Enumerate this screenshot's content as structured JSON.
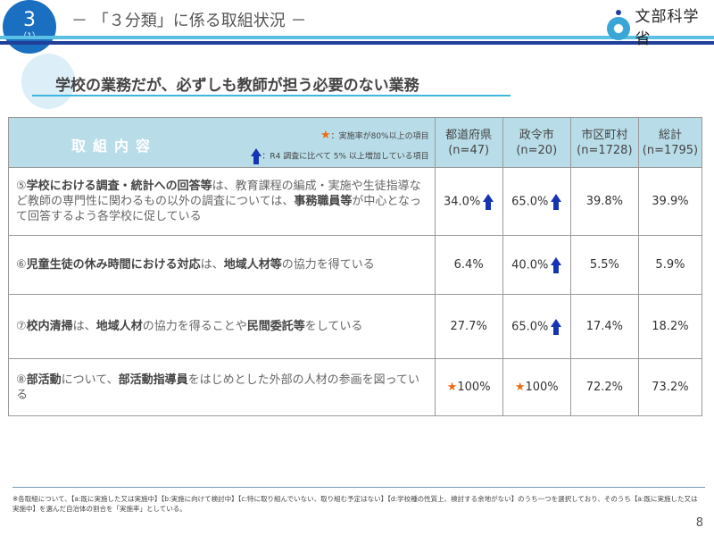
{
  "header": {
    "section_number": "3",
    "section_sub": "（1）",
    "title": "－ 「３分類」に係る取組状況 －",
    "logo_text": "文部科学省"
  },
  "subtitle": "学校の業務だが、必ずしも教師が担う必要のない業務",
  "table": {
    "content_header": "取組内容",
    "legend_star": "：実施率が80%以上の項目",
    "legend_arrow": "：R4 調査に比べて 5% 以上増加している項目",
    "columns": [
      {
        "name": "都道府県",
        "n": "(n=47)"
      },
      {
        "name": "政令市",
        "n": "(n=20)"
      },
      {
        "name": "市区町村",
        "n": "(n=1728)"
      },
      {
        "name": "総計",
        "n": "(n=1795)"
      }
    ],
    "rows": [
      {
        "parts": [
          [
            "⑤",
            false
          ],
          [
            "学校における調査・統計への回答等",
            true
          ],
          [
            "は、教育課程の編成・実施や生徒指導など教師の専門性に関わるもの以外の調査については、",
            false
          ],
          [
            "事務職員等",
            true
          ],
          [
            "が中心となって回答するよう各学校に促している",
            false
          ]
        ],
        "values": [
          {
            "v": "34.0%",
            "mark": "arrow"
          },
          {
            "v": "65.0%",
            "mark": "arrow"
          },
          {
            "v": "39.8%",
            "mark": ""
          },
          {
            "v": "39.9%",
            "mark": ""
          }
        ]
      },
      {
        "parts": [
          [
            "⑥",
            false
          ],
          [
            "児童生徒の休み時間における対応",
            true
          ],
          [
            "は、",
            false
          ],
          [
            "地域人材等",
            true
          ],
          [
            "の協力を得ている",
            false
          ]
        ],
        "values": [
          {
            "v": "6.4%",
            "mark": ""
          },
          {
            "v": "40.0%",
            "mark": "arrow"
          },
          {
            "v": "5.5%",
            "mark": ""
          },
          {
            "v": "5.9%",
            "mark": ""
          }
        ]
      },
      {
        "parts": [
          [
            "⑦",
            false
          ],
          [
            "校内清掃",
            true
          ],
          [
            "は、",
            false
          ],
          [
            "地域人材",
            true
          ],
          [
            "の協力を得ることや",
            false
          ],
          [
            "民間委託等",
            true
          ],
          [
            "をしている",
            false
          ]
        ],
        "values": [
          {
            "v": "27.7%",
            "mark": ""
          },
          {
            "v": "65.0%",
            "mark": "arrow"
          },
          {
            "v": "17.4%",
            "mark": ""
          },
          {
            "v": "18.2%",
            "mark": ""
          }
        ]
      },
      {
        "parts": [
          [
            "⑧",
            false
          ],
          [
            "部活動",
            true
          ],
          [
            "について、",
            false
          ],
          [
            "部活動指導員",
            true
          ],
          [
            "をはじめとした外部の人材の参画を図っている",
            false
          ]
        ],
        "values": [
          {
            "v": "100%",
            "mark": "star"
          },
          {
            "v": "100%",
            "mark": "star"
          },
          {
            "v": "72.2%",
            "mark": ""
          },
          {
            "v": "73.2%",
            "mark": ""
          }
        ]
      }
    ]
  },
  "footnote": "※各取組について、【a:既に実施した又は実施中】【b:実施に向けて検討中】【c:特に取り組んでいない、取り組む予定はない】【d:学校種の性質上、検討する余地がない】のうち一つを選択しており、そのうち【a:既に実施した又は実施中】を選んだ自治体の割合を「実施率」としている。",
  "page_number": "8",
  "colors": {
    "accent_blue": "#1a6fc0",
    "header_bg": "#b8dde9",
    "star": "#ec6a12",
    "arrow": "#1434b4"
  }
}
